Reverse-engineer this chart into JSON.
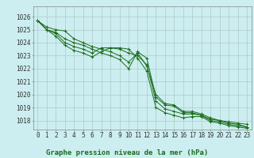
{
  "title": "Graphe pression niveau de la mer (hPa)",
  "background_color": "#cceef0",
  "grid_color": "#b0c8c8",
  "line_color": "#1a6b1a",
  "marker_color": "#1a6b1a",
  "hours": [
    0,
    1,
    2,
    3,
    4,
    5,
    6,
    7,
    8,
    9,
    10,
    11,
    12,
    13,
    14,
    15,
    16,
    17,
    18,
    19,
    20,
    21,
    22,
    23
  ],
  "series": [
    [
      1025.7,
      1025.2,
      1025.0,
      1024.9,
      1024.3,
      1024.0,
      1023.7,
      1023.5,
      1023.3,
      1023.0,
      1022.5,
      1023.2,
      1022.2,
      1020.0,
      1019.3,
      1019.2,
      1018.7,
      1018.7,
      1018.5,
      1018.2,
      1018.0,
      1017.9,
      1017.8,
      1017.7
    ],
    [
      1025.7,
      1025.0,
      1024.8,
      1024.3,
      1024.0,
      1023.8,
      1023.5,
      1023.2,
      1023.0,
      1022.7,
      1022.0,
      1023.3,
      1022.8,
      1019.8,
      1019.2,
      1019.1,
      1018.6,
      1018.6,
      1018.4,
      1018.1,
      1018.0,
      1017.8,
      1017.7,
      1017.5
    ],
    [
      1025.7,
      1025.0,
      1024.7,
      1024.0,
      1023.7,
      1023.5,
      1023.2,
      1023.6,
      1023.6,
      1023.5,
      1023.2,
      1023.0,
      1022.3,
      1019.5,
      1018.9,
      1018.7,
      1018.5,
      1018.5,
      1018.4,
      1018.0,
      1017.9,
      1017.7,
      1017.6,
      1017.5
    ],
    [
      1025.7,
      1025.0,
      1024.5,
      1023.8,
      1023.4,
      1023.2,
      1022.9,
      1023.3,
      1023.6,
      1023.6,
      1023.5,
      1022.8,
      1021.8,
      1019.0,
      1018.6,
      1018.4,
      1018.2,
      1018.3,
      1018.3,
      1017.9,
      1017.8,
      1017.6,
      1017.5,
      1017.4
    ]
  ],
  "ylim": [
    1017.3,
    1026.8
  ],
  "yticks": [
    1018,
    1019,
    1020,
    1021,
    1022,
    1023,
    1024,
    1025,
    1026
  ],
  "title_fontsize": 6.5,
  "tick_fontsize": 5.5
}
